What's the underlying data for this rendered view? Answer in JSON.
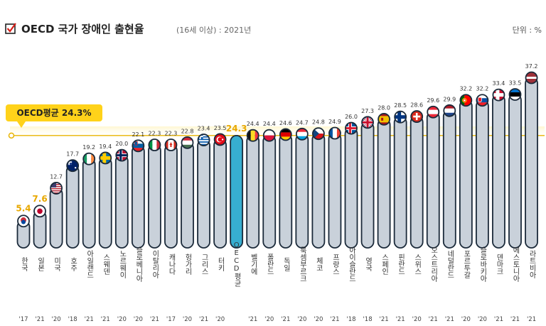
{
  "title": "OECD 국가 장애인 출현율",
  "subtitle": "(16세 이상) : 2021년",
  "unit_label": "단위 : %",
  "average_label": "OECD평균 24.3%",
  "colors": {
    "bar": "#c9d1da",
    "bar_stroke": "#1b2a3a",
    "bar_highlight": "#37aed0",
    "average_line": "#e8b400",
    "value_highlight": "#e8a800"
  },
  "chart_data": {
    "type": "bar",
    "title": "OECD 국가 장애인 출현율",
    "subtitle": "(16세 이상) : 2021년",
    "unit": "단위 : %",
    "average": 24.3,
    "ylim": [
      0,
      40
    ],
    "legend": "none",
    "grid": false,
    "categories": [
      "한국",
      "일본",
      "미국",
      "호주",
      "아일랜드",
      "스웨덴",
      "노르웨이",
      "슬로베니아",
      "이탈리아",
      "캐나다",
      "헝가리",
      "그리스",
      "터키",
      "OECD평균",
      "벨기에",
      "폴란드",
      "독일",
      "룩셈부르크",
      "체코",
      "프랑스",
      "아이슬란드",
      "영국",
      "스페인",
      "핀란드",
      "스위스",
      "오스트리아",
      "네덜란드",
      "포르투갈",
      "슬로바키아",
      "덴마크",
      "에스토니아",
      "라트비아"
    ],
    "years": [
      "'17",
      "'21",
      "'20",
      "'18",
      "'21",
      "'21",
      "'20",
      "'20",
      "'21",
      "'17",
      "'20",
      "'21",
      "'20",
      "",
      "'21",
      "'20",
      "'21",
      "'20",
      "'20",
      "'21",
      "'18",
      "'18",
      "'21",
      "'21",
      "'20",
      "'21",
      "'21",
      "'20",
      "'20",
      "'21",
      "'21",
      "'21"
    ],
    "values": [
      5.4,
      7.6,
      12.7,
      17.7,
      19.2,
      19.4,
      20.0,
      22.1,
      22.3,
      22.3,
      22.8,
      23.4,
      23.5,
      24.3,
      24.4,
      24.4,
      24.6,
      24.7,
      24.8,
      24.9,
      26.0,
      27.3,
      28.0,
      28.5,
      28.6,
      29.6,
      29.9,
      32.2,
      32.2,
      33.4,
      33.5,
      37.2
    ],
    "value_labels": [
      "5.4",
      "7.6",
      "12.7",
      "17.7",
      "19.2",
      "19.4",
      "20.0",
      "22.1",
      "22.3",
      "22.3",
      "22.8",
      "23.4",
      "23.5",
      "24.3",
      "24.4",
      "24.4",
      "24.6",
      "24.7",
      "24.8",
      "24.9",
      "26.0",
      "27.3",
      "28.0",
      "28.5",
      "28.6",
      "29.6",
      "29.9",
      "32.2",
      "32.2",
      "33.4",
      "33.5",
      "37.2"
    ],
    "highlight_values": [
      "한국",
      "일본",
      "OECD평균"
    ],
    "flag_icons": [
      "flag-kr",
      "flag-jp",
      "flag-us",
      "flag-au",
      "flag-ie",
      "flag-se",
      "flag-no",
      "flag-si",
      "flag-it",
      "flag-ca",
      "flag-hu",
      "flag-gr",
      "flag-tr",
      "",
      "flag-be",
      "flag-pl",
      "flag-de",
      "flag-lu",
      "flag-cz",
      "flag-fr",
      "flag-is",
      "flag-gb",
      "flag-es",
      "flag-fi",
      "flag-ch",
      "flag-at",
      "flag-nl",
      "flag-pt",
      "flag-sk",
      "flag-dk",
      "flag-ee",
      "flag-lv"
    ]
  }
}
